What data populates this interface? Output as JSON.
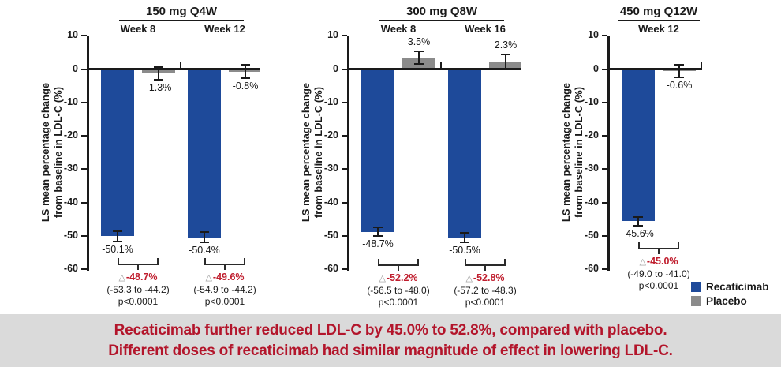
{
  "figure": {
    "y_axis_label_line1": "LS mean percentage change",
    "y_axis_label_line2": "from baseline in LDL-C (%)",
    "y_ticks": [
      10,
      0,
      -10,
      -20,
      -30,
      -40,
      -50,
      -60
    ]
  },
  "colors": {
    "recaticimab": "#1E4A9A",
    "placebo": "#8B8B8B",
    "axis": "#1a1a1a",
    "delta_red": "#C01E2E",
    "banner_text": "#B3152B",
    "banner_bg": "#DADADA"
  },
  "legend": {
    "items": [
      {
        "label": "Recaticimab",
        "color": "#1E4A9A"
      },
      {
        "label": "Placebo",
        "color": "#8B8B8B"
      }
    ]
  },
  "banner": {
    "line1": "Recaticimab further reduced LDL-C by 45.0% to 52.8%, compared with placebo.",
    "line2": "Different doses of recaticimab had similar magnitude of effect in lowering LDL-C."
  },
  "chart_data": {
    "type": "bar",
    "title": "",
    "ylabel": "LS mean percentage change from baseline in LDL-C (%)",
    "ylim": [
      -60,
      10
    ],
    "grid": false,
    "legend_position": "bottom-right",
    "series_names": [
      "Recaticimab",
      "Placebo"
    ],
    "panels": [
      {
        "dose": "150 mg Q4W",
        "groups": [
          {
            "week": "Week 8",
            "recaticimab": -50.1,
            "recaticimab_label": "-50.1%",
            "recaticimab_se": 1.5,
            "placebo": -1.3,
            "placebo_label": "-1.3%",
            "placebo_se": 2.0,
            "delta": "-48.7%",
            "ci": "(-53.3 to -44.2)",
            "p": "p<0.0001"
          },
          {
            "week": "Week 12",
            "recaticimab": -50.4,
            "recaticimab_label": "-50.4%",
            "recaticimab_se": 1.6,
            "placebo": -0.8,
            "placebo_label": "-0.8%",
            "placebo_se": 2.0,
            "delta": "-49.6%",
            "ci": "(-54.9 to -44.2)",
            "p": "p<0.0001"
          }
        ]
      },
      {
        "dose": "300 mg Q8W",
        "groups": [
          {
            "week": "Week 8",
            "recaticimab": -48.7,
            "recaticimab_label": "-48.7%",
            "recaticimab_se": 1.4,
            "placebo": 3.5,
            "placebo_label": "3.5%",
            "placebo_se": 1.9,
            "delta": "-52.2%",
            "ci": "(-56.5 to -48.0)",
            "p": "p<0.0001"
          },
          {
            "week": "Week 16",
            "recaticimab": -50.5,
            "recaticimab_label": "-50.5%",
            "recaticimab_se": 1.4,
            "placebo": 2.3,
            "placebo_label": "2.3%",
            "placebo_se": 2.1,
            "delta": "-52.8%",
            "ci": "(-57.2 to -48.3)",
            "p": "p<0.0001"
          }
        ]
      },
      {
        "dose": "450 mg Q12W",
        "groups": [
          {
            "week": "Week 12",
            "recaticimab": -45.6,
            "recaticimab_label": "-45.6%",
            "recaticimab_se": 1.3,
            "placebo": -0.6,
            "placebo_label": "-0.6%",
            "placebo_se": 2.0,
            "delta": "-45.0%",
            "ci": "(-49.0 to -41.0)",
            "p": "p<0.0001"
          }
        ]
      }
    ]
  }
}
